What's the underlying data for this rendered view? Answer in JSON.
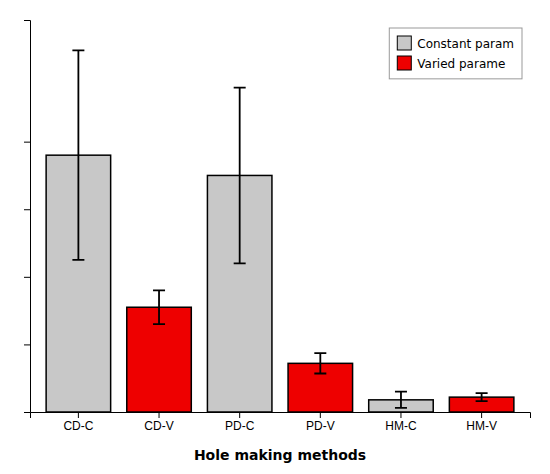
{
  "chart_data": {
    "type": "bar",
    "xlabel": "Hole making methods",
    "categories": [
      "CD-C",
      "CD-V",
      "PD-C",
      "PD-V",
      "HM-C",
      "HM-V"
    ],
    "series": [
      {
        "name": "Constant param",
        "color": "#c8c8c8",
        "values": [
          3.8,
          null,
          3.5,
          null,
          0.18,
          null
        ],
        "errors": [
          1.55,
          null,
          1.3,
          null,
          0.12,
          null
        ]
      },
      {
        "name": "Varied parame",
        "color": "#ee0000",
        "values": [
          null,
          1.55,
          null,
          0.72,
          null,
          0.22
        ],
        "errors": [
          null,
          0.25,
          null,
          0.15,
          null,
          0.06
        ]
      }
    ],
    "ylim": [
      0,
      5.8
    ],
    "yticks": [
      1.0,
      2.0,
      3.0,
      4.0
    ],
    "tick_labels": "x",
    "grid": false,
    "legend": "upper right"
  }
}
